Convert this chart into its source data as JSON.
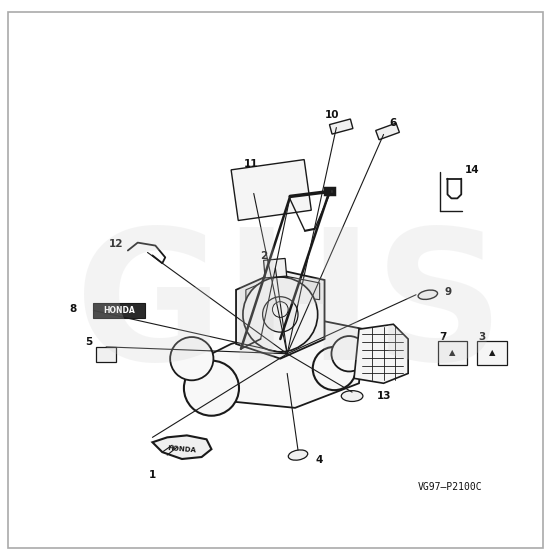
{
  "bg_color": "#ffffff",
  "border_color": "#999999",
  "line_color": "#1a1a1a",
  "text_color": "#111111",
  "watermark": "GHS",
  "diagram_code": "VG97–P2100C",
  "figsize": [
    5.6,
    5.6
  ],
  "dpi": 100
}
